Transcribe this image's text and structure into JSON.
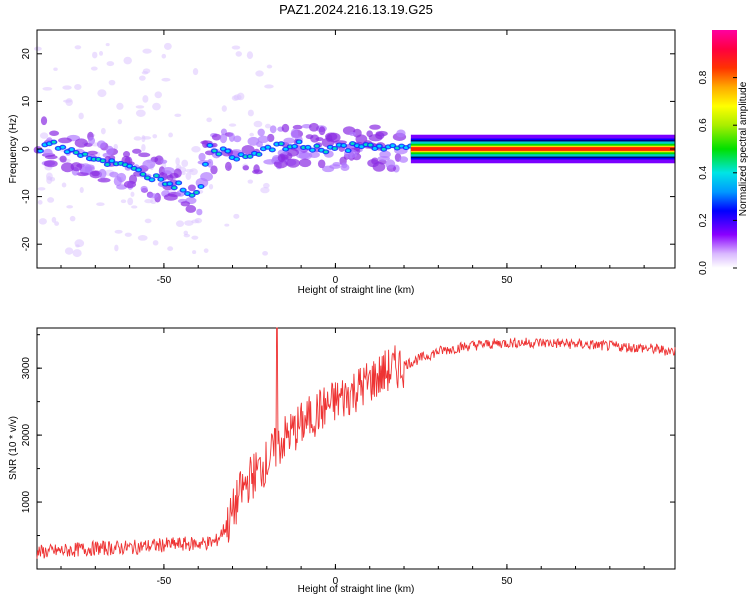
{
  "title": "PAZ1.2024.216.13.19.G25",
  "chart_data": [
    {
      "type": "heatmap",
      "xlabel": "Height of straight line (km)",
      "ylabel": "Frequency (Hz)",
      "xlim": [
        -87,
        99
      ],
      "ylim": [
        -25,
        25
      ],
      "xticks": [
        -50,
        0,
        50
      ],
      "yticks": [
        -20,
        -10,
        0,
        10,
        20
      ],
      "colorbar": {
        "label": "Normalized spectral amplitude",
        "range": [
          0,
          1
        ],
        "ticks": [
          "0.0",
          "0.2",
          "0.4",
          "0.6",
          "0.8"
        ]
      },
      "ridge": [
        {
          "x": -85,
          "f": 1.5
        },
        {
          "x": -80,
          "f": 0.5
        },
        {
          "x": -75,
          "f": -0.5
        },
        {
          "x": -70,
          "f": -2
        },
        {
          "x": -65,
          "f": -3
        },
        {
          "x": -60,
          "f": -4
        },
        {
          "x": -55,
          "f": -5.5
        },
        {
          "x": -50,
          "f": -6.5
        },
        {
          "x": -45,
          "f": -8
        },
        {
          "x": -40,
          "f": -10
        },
        {
          "x": -37,
          "f": 0.5
        },
        {
          "x": -30,
          "f": -1.5
        },
        {
          "x": -25,
          "f": -1
        },
        {
          "x": -20,
          "f": 0
        },
        {
          "x": -15,
          "f": 0.5
        },
        {
          "x": -10,
          "f": 0.8
        },
        {
          "x": -5,
          "f": 0
        },
        {
          "x": 0,
          "f": 0.3
        },
        {
          "x": 10,
          "f": 0.5
        },
        {
          "x": 20,
          "f": 0.3
        },
        {
          "x": 30,
          "f": 0
        },
        {
          "x": 60,
          "f": 0
        },
        {
          "x": 99,
          "f": 0
        }
      ]
    },
    {
      "type": "line",
      "xlabel": "Height of straight line (km)",
      "ylabel": "SNR (10 * v/v)",
      "xlim": [
        -87,
        99
      ],
      "ylim": [
        0,
        3600
      ],
      "xticks": [
        -50,
        0,
        50
      ],
      "yticks": [
        1000,
        2000,
        3000
      ],
      "line_color": "#ee3333",
      "series": [
        {
          "x": [
            -87,
            -80,
            -70,
            -60,
            -50,
            -40,
            -35,
            -31,
            -28,
            -25,
            -20,
            -18,
            -15,
            -10,
            -5,
            0,
            5,
            10,
            15,
            20,
            25,
            30,
            35,
            40,
            50,
            60,
            70,
            80,
            90,
            99
          ],
          "values": [
            250,
            270,
            310,
            320,
            360,
            380,
            400,
            700,
            1100,
            1350,
            1600,
            1750,
            1950,
            2150,
            2350,
            2500,
            2650,
            2800,
            2950,
            3050,
            3150,
            3250,
            3300,
            3340,
            3380,
            3380,
            3360,
            3330,
            3300,
            3250
          ]
        }
      ],
      "spike": {
        "x": -17,
        "value": 3600
      }
    }
  ]
}
